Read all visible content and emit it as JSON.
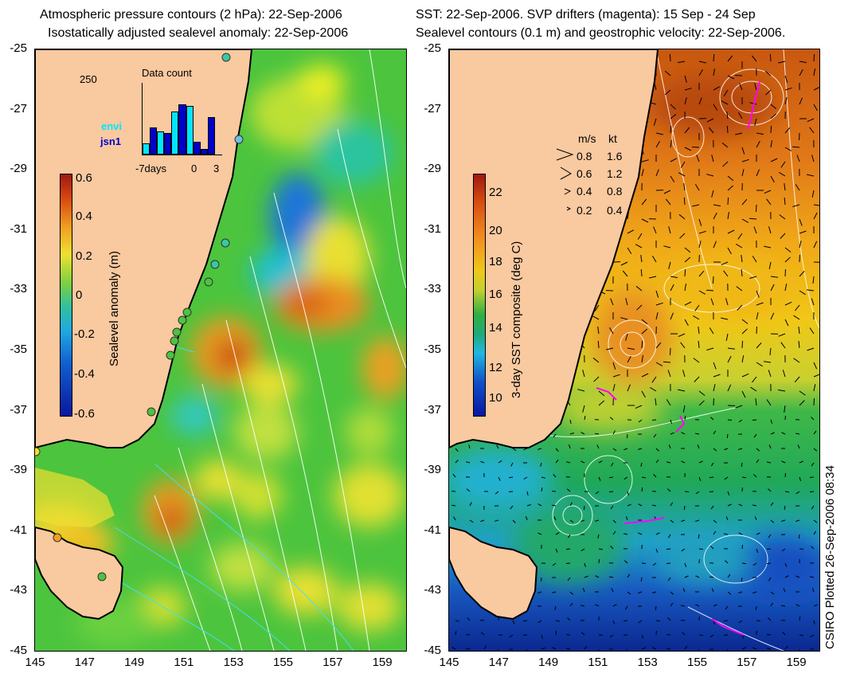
{
  "left_panel": {
    "title_line1": "Atmospheric pressure contours (2 hPa): 22-Sep-2006",
    "title_line2": "Isostatically adjusted sealevel anomaly: 22-Sep-2006",
    "colorbar": {
      "label": "Sealevel anomaly (m)",
      "ticks": [
        "0.6",
        "0.4",
        "0.2",
        "0",
        "-0.2",
        "-0.4",
        "-0.6"
      ]
    },
    "inset": {
      "title": "Data count",
      "y_max_label": "250",
      "x_labels": [
        "-7days",
        "0",
        "3"
      ],
      "legend": [
        {
          "label": "envi",
          "color": "#00e5ff"
        },
        {
          "label": "jsn1",
          "color": "#0000cc"
        }
      ],
      "bars": [
        {
          "day": -7,
          "envi": 40,
          "jsn1": 0
        },
        {
          "day": -6,
          "envi": 0,
          "jsn1": 95
        },
        {
          "day": -5,
          "envi": 80,
          "jsn1": 0
        },
        {
          "day": -4,
          "envi": 0,
          "jsn1": 75
        },
        {
          "day": -3,
          "envi": 150,
          "jsn1": 0
        },
        {
          "day": -2,
          "envi": 0,
          "jsn1": 175
        },
        {
          "day": -1,
          "envi": 170,
          "jsn1": 0
        },
        {
          "day": 0,
          "envi": 0,
          "jsn1": 45
        },
        {
          "day": 1,
          "envi": 0,
          "jsn1": 20
        },
        {
          "day": 2,
          "envi": 0,
          "jsn1": 130
        }
      ]
    }
  },
  "right_panel": {
    "title_line1": "SST: 22-Sep-2006. SVP drifters (magenta): 15 Sep - 24 Sep",
    "title_line2": "Sealevel contours (0.1 m) and geostrophic velocity: 22-Sep-2006.",
    "colorbar": {
      "label": "3-day SST composite (deg C)",
      "ticks": [
        "22",
        "20",
        "18",
        "16",
        "14",
        "12",
        "10"
      ]
    },
    "velocity_legend": {
      "header_ms": "m/s",
      "header_kt": "kt",
      "rows": [
        {
          "ms": "0.8",
          "kt": "1.6"
        },
        {
          "ms": "0.6",
          "kt": "1.2"
        },
        {
          "ms": "0.4",
          "kt": "0.8"
        },
        {
          "ms": "0.2",
          "kt": "0.4"
        }
      ]
    }
  },
  "axes": {
    "y_ticks": [
      "-25",
      "-27",
      "-29",
      "-31",
      "-33",
      "-35",
      "-37",
      "-39",
      "-41",
      "-43",
      "-45"
    ],
    "x_ticks": [
      "145",
      "147",
      "149",
      "151",
      "153",
      "155",
      "157",
      "159"
    ]
  },
  "credit": "CSIRO Plotted 26-Sep-2006 08:34",
  "colors": {
    "land": "#f9c9a0",
    "coast": "#000000",
    "drifter": "#ff00ff",
    "pressure_contour": "#ffffff",
    "sla_contour": "#40e0ff"
  }
}
